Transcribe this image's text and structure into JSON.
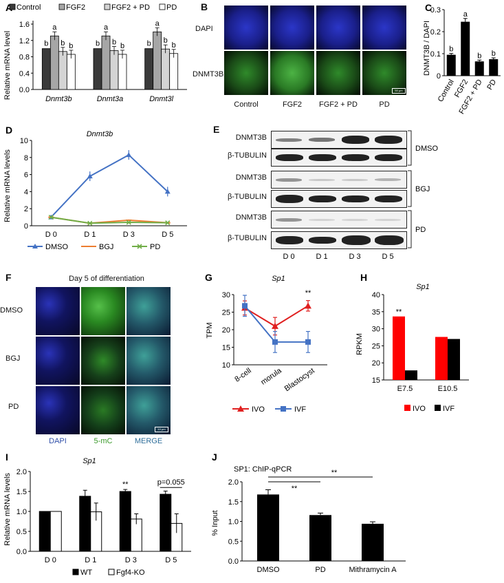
{
  "panels": {
    "A": {
      "label": "A",
      "ylabel": "Relative mRNA level",
      "legend": [
        "Control",
        "FGF2",
        "FGF2 + PD",
        "PD"
      ],
      "genes": [
        "Dnmt3b",
        "Dnmt3a",
        "Dnmt3l"
      ],
      "yticks": [
        "0.0",
        "0.4",
        "0.8",
        "1.2",
        "1.6"
      ]
    },
    "B": {
      "label": "B",
      "rows": [
        "DAPI",
        "DNMT3B"
      ],
      "cols": [
        "Control",
        "FGF2",
        "FGF2 + PD",
        "PD"
      ],
      "scalebar": "50 μm"
    },
    "C": {
      "label": "C",
      "ylabel": "DNMT3B / DAPI",
      "yticks": [
        "0",
        "0.1",
        "0.2",
        "0.3"
      ],
      "cats": [
        "Control",
        "FGF2",
        "FGF2 + PD",
        "PD"
      ]
    },
    "D": {
      "label": "D",
      "title": "Dnmt3b",
      "ylabel": "Relative mRNA levels",
      "yticks": [
        "0",
        "2",
        "4",
        "6",
        "8",
        "10"
      ],
      "xticks": [
        "D 0",
        "D 1",
        "D 3",
        "D 5"
      ],
      "legend": [
        "DMSO",
        "BGJ",
        "PD"
      ]
    },
    "E": {
      "label": "E",
      "rows": [
        "DNMT3B",
        "β-TUBULIN",
        "DNMT3B",
        "β-TUBULIN",
        "DNMT3B",
        "β-TUBULIN"
      ],
      "groups": [
        "DMSO",
        "BGJ",
        "PD"
      ],
      "lanes": [
        "D 0",
        "D 1",
        "D 3",
        "D 5"
      ]
    },
    "F": {
      "label": "F",
      "title": "Day 5 of differentiation",
      "rows": [
        "DMSO",
        "BGJ",
        "PD"
      ],
      "cols": [
        "DAPI",
        "5-mC",
        "MERGE"
      ],
      "scalebar": "10 μm"
    },
    "G": {
      "label": "G",
      "title": "Sp1",
      "ylabel": "TPM",
      "yticks": [
        "10",
        "15",
        "20",
        "25",
        "30"
      ],
      "xticks": [
        "8-cell",
        "morula",
        "Blastocyst"
      ],
      "legend": [
        "IVO",
        "IVF"
      ],
      "sig": "**"
    },
    "H": {
      "label": "H",
      "title": "Sp1",
      "ylabel": "RPKM",
      "yticks": [
        "15",
        "20",
        "25",
        "30",
        "35",
        "40"
      ],
      "xticks": [
        "E7.5",
        "E10.5"
      ],
      "legend": [
        "IVO",
        "IVF"
      ],
      "sig": "**"
    },
    "I": {
      "label": "I",
      "title": "Sp1",
      "ylabel": "Relative mRNA levels",
      "yticks": [
        "0.0",
        "0.5",
        "1.0",
        "1.5",
        "2.0"
      ],
      "xticks": [
        "D 0",
        "D 1",
        "D 3",
        "D 5"
      ],
      "legend": [
        "WT",
        "Fgf4-KO"
      ],
      "sig": "**",
      "pval": "p=0.055"
    },
    "J": {
      "label": "J",
      "title": "SP1: ChIP-qPCR",
      "ylabel": "% Input",
      "yticks": [
        "0.0",
        "0.5",
        "1.0",
        "1.5",
        "2.0"
      ],
      "xticks": [
        "DMSO",
        "PD",
        "Mithramycin A"
      ],
      "sig1": "**",
      "sig2": "**"
    }
  },
  "chart_data": [
    {
      "panel": "A",
      "type": "bar",
      "categories": [
        "Dnmt3b",
        "Dnmt3a",
        "Dnmt3l"
      ],
      "ylabel": "Relative mRNA level",
      "ylim": [
        0,
        1.6
      ],
      "series": [
        {
          "name": "Control",
          "values": [
            1.0,
            1.0,
            1.0
          ],
          "letters": [
            "b",
            "b",
            "b"
          ]
        },
        {
          "name": "FGF2",
          "values": [
            1.31,
            1.31,
            1.41
          ],
          "letters": [
            "a",
            "a",
            "a"
          ]
        },
        {
          "name": "FGF2 + PD",
          "values": [
            0.93,
            0.95,
            0.99
          ],
          "letters": [
            "b",
            "b",
            "b"
          ]
        },
        {
          "name": "PD",
          "values": [
            0.86,
            0.86,
            0.88
          ],
          "letters": [
            "b",
            "b",
            "b"
          ]
        }
      ],
      "colors": {
        "Control": "#3a3a3a",
        "FGF2": "#a6a6a6",
        "FGF2 + PD": "#d4d4d4",
        "PD": "#ffffff"
      }
    },
    {
      "panel": "C",
      "type": "bar",
      "categories": [
        "Control",
        "FGF2",
        "FGF2 + PD",
        "PD"
      ],
      "values": [
        0.095,
        0.245,
        0.065,
        0.075
      ],
      "letters": [
        "b",
        "a",
        "b",
        "b"
      ],
      "ylim": [
        0,
        0.3
      ],
      "ylabel": "DNMT3B / DAPI"
    },
    {
      "panel": "D",
      "type": "line",
      "x": [
        "D 0",
        "D 1",
        "D 3",
        "D 5"
      ],
      "ylim": [
        0,
        10
      ],
      "title": "Dnmt3b",
      "ylabel": "Relative mRNA levels",
      "series": [
        {
          "name": "DMSO",
          "values": [
            1.0,
            5.8,
            8.3,
            4.0
          ],
          "color": "#4472c4"
        },
        {
          "name": "BGJ",
          "values": [
            1.0,
            0.3,
            0.65,
            0.35
          ],
          "color": "#ed7d31"
        },
        {
          "name": "PD",
          "values": [
            1.0,
            0.3,
            0.4,
            0.35
          ],
          "color": "#70ad47"
        }
      ]
    },
    {
      "panel": "G",
      "type": "line",
      "x": [
        "8-cell",
        "morula",
        "Blastocyst"
      ],
      "ylim": [
        10,
        30
      ],
      "title": "Sp1",
      "ylabel": "TPM",
      "series": [
        {
          "name": "IVO",
          "values": [
            26.2,
            21.0,
            26.8
          ],
          "color": "#e02020"
        },
        {
          "name": "IVF",
          "values": [
            26.8,
            16.5,
            16.5
          ],
          "color": "#4472c4"
        }
      ]
    },
    {
      "panel": "H",
      "type": "bar",
      "categories": [
        "E7.5",
        "E10.5"
      ],
      "ylim": [
        15,
        40
      ],
      "title": "Sp1",
      "ylabel": "RPKM",
      "series": [
        {
          "name": "IVO",
          "values": [
            33.6,
            27.6
          ],
          "color": "#ff0000"
        },
        {
          "name": "IVF",
          "values": [
            17.8,
            27.0
          ],
          "color": "#000000"
        }
      ]
    },
    {
      "panel": "I",
      "type": "bar",
      "categories": [
        "D 0",
        "D 1",
        "D 3",
        "D 5"
      ],
      "ylim": [
        0,
        2.0
      ],
      "title": "Sp1",
      "ylabel": "Relative mRNA levels",
      "series": [
        {
          "name": "WT",
          "values": [
            1.0,
            1.38,
            1.5,
            1.43
          ],
          "color": "#000000"
        },
        {
          "name": "Fgf4-KO",
          "values": [
            1.0,
            0.99,
            0.81,
            0.7
          ],
          "color": "#ffffff"
        }
      ]
    },
    {
      "panel": "J",
      "type": "bar",
      "categories": [
        "DMSO",
        "PD",
        "Mithramycin A"
      ],
      "values": [
        1.68,
        1.16,
        0.94
      ],
      "ylim": [
        0,
        2.0
      ],
      "title": "SP1: ChIP-qPCR",
      "ylabel": "% Input"
    }
  ]
}
